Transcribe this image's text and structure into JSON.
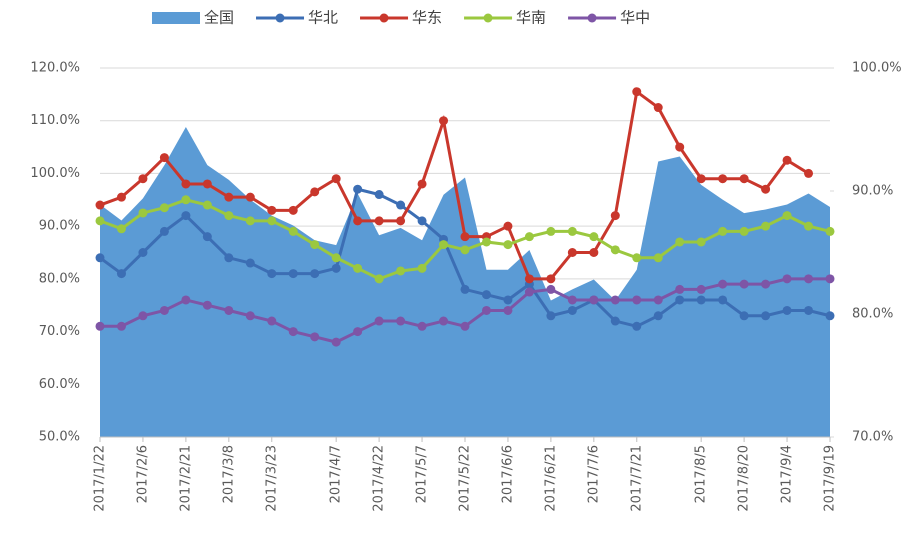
{
  "chart_data": {
    "type": "line",
    "categories": [
      "2017/1/22",
      null,
      "2017/2/6",
      null,
      "2017/2/21",
      null,
      "2017/3/8",
      null,
      "2017/3/23",
      null,
      null,
      "2017/4/7",
      null,
      "2017/4/22",
      null,
      "2017/5/7",
      null,
      "2017/5/22",
      null,
      "2017/6/6",
      null,
      "2017/6/21",
      null,
      "2017/7/6",
      null,
      "2017/7/21",
      null,
      null,
      "2017/8/5",
      null,
      "2017/8/20",
      null,
      "2017/9/4",
      null,
      "2017/9/19"
    ],
    "series": [
      {
        "name": "全国",
        "type": "area",
        "axis": "y2",
        "color": "#5b9bd5",
        "values": [
          88.9,
          87.6,
          89.4,
          92.1,
          95.2,
          92.1,
          90.9,
          89.3,
          88,
          87.2,
          86,
          85.6,
          89.8,
          86.4,
          87,
          86,
          89.7,
          91.1,
          83.6,
          83.6,
          85.2,
          81.1,
          82,
          82.8,
          81.1,
          83.6,
          92.4,
          92.8,
          90.5,
          89.3,
          88.2,
          88.5,
          88.9,
          89.8,
          88.7
        ]
      },
      {
        "name": "华北",
        "type": "line",
        "color": "#3c6eb4",
        "values": [
          84,
          81,
          85,
          89,
          92,
          88,
          84,
          83,
          81,
          81,
          81,
          82,
          97,
          96,
          94,
          91,
          87.5,
          78,
          77,
          76,
          79,
          73,
          74,
          76,
          72,
          71,
          73,
          76,
          76,
          76,
          73,
          73,
          74,
          74,
          73
        ]
      },
      {
        "name": "华东",
        "type": "line",
        "color": "#c9372c",
        "values": [
          94,
          95.5,
          99,
          103,
          98,
          98,
          95.5,
          95.5,
          93,
          93,
          96.5,
          99,
          91,
          91,
          91,
          98,
          110,
          88,
          88,
          90,
          80,
          80,
          85,
          85,
          92,
          115.5,
          112.5,
          105,
          99,
          99,
          99,
          97,
          102.5,
          100,
          null
        ]
      },
      {
        "name": "华南",
        "type": "line",
        "color": "#9bc83f",
        "values": [
          91,
          89.5,
          92.5,
          93.5,
          95,
          94,
          92,
          91,
          91,
          89,
          86.5,
          84,
          82,
          80,
          81.5,
          82,
          86.5,
          85.5,
          87,
          86.5,
          88,
          89,
          89,
          88,
          85.5,
          84,
          84,
          87,
          87,
          89,
          89,
          90,
          92,
          90,
          89
        ]
      },
      {
        "name": "华中",
        "type": "line",
        "color": "#7e55a6",
        "values": [
          71,
          71,
          73,
          74,
          76,
          75,
          74,
          73,
          72,
          70,
          69,
          68,
          70,
          72,
          72,
          71,
          72,
          71,
          74,
          74,
          77.5,
          78,
          76,
          76,
          76,
          76,
          76,
          78,
          78,
          79,
          79,
          79,
          80,
          80,
          80
        ]
      }
    ],
    "ylim": [
      50,
      120
    ],
    "yticks": [
      {
        "value": 50,
        "label": "50.0%"
      },
      {
        "value": 60,
        "label": "60.0%"
      },
      {
        "value": 70,
        "label": "70.0%"
      },
      {
        "value": 80,
        "label": "80.0%"
      },
      {
        "value": 90,
        "label": "90.0%"
      },
      {
        "value": 100,
        "label": "100.0%"
      },
      {
        "value": 110,
        "label": "110.0%"
      },
      {
        "value": 120,
        "label": "120.0%"
      }
    ],
    "y2lim": [
      70,
      100
    ],
    "y2ticks": [
      {
        "value": 70,
        "label": "70.0%"
      },
      {
        "value": 80,
        "label": "80.0%"
      },
      {
        "value": 90,
        "label": "90.0%"
      },
      {
        "value": 100,
        "label": "100.0%"
      }
    ],
    "grid": true,
    "legend": "top"
  }
}
